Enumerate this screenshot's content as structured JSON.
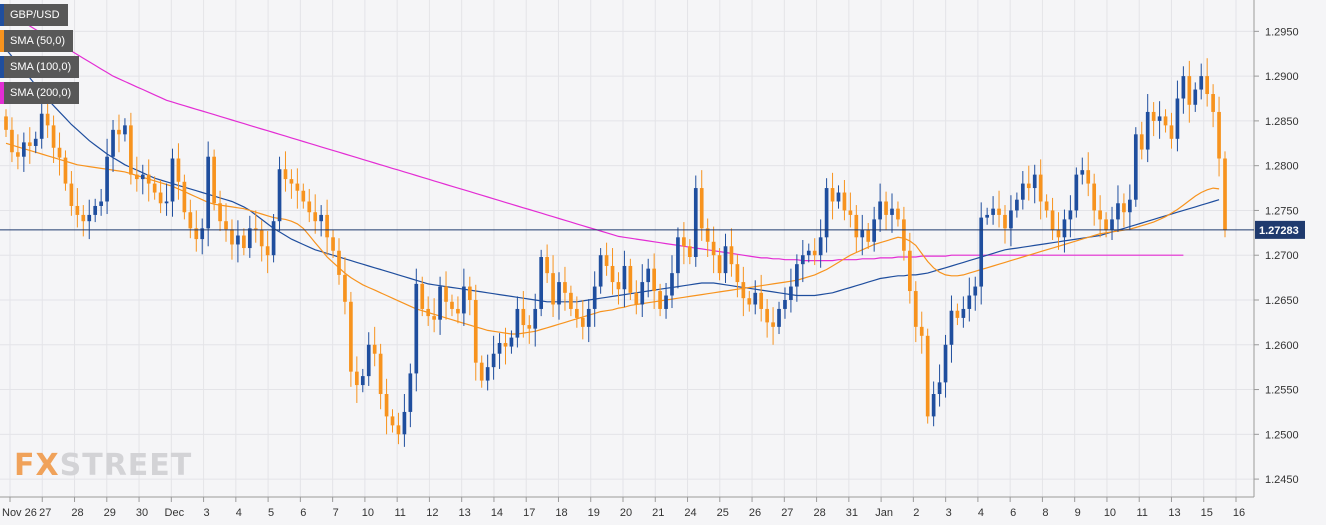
{
  "chart_data": {
    "type": "candlestick",
    "symbol": "GBP/USD",
    "ylim": [
      1.243,
      1.2985
    ],
    "y_ticks": [
      "1.2950",
      "1.2900",
      "1.2850",
      "1.2800",
      "1.2750",
      "1.2700",
      "1.2650",
      "1.2600",
      "1.2550",
      "1.2500",
      "1.2450"
    ],
    "x_ticks": [
      "Nov 26",
      "27",
      "28",
      "29",
      "30",
      "Dec",
      "3",
      "4",
      "5",
      "6",
      "7",
      "10",
      "11",
      "12",
      "13",
      "14",
      "17",
      "18",
      "19",
      "20",
      "21",
      "24",
      "25",
      "26",
      "27",
      "28",
      "31",
      "Jan",
      "2",
      "3",
      "4",
      "6",
      "8",
      "9",
      "10",
      "11",
      "13",
      "15",
      "16"
    ],
    "last_price": "1.27283",
    "legend": [
      {
        "label": "GBP/USD",
        "color": "#1f4e9e"
      },
      {
        "label": "SMA (50,0)",
        "color": "#f7931e"
      },
      {
        "label": "SMA (100,0)",
        "color": "#1f4e9e"
      },
      {
        "label": "SMA (200,0)",
        "color": "#e32dd4"
      }
    ],
    "colors": {
      "up": "#1f4e9e",
      "down": "#f7931e",
      "sma50": "#f7931e",
      "sma100": "#1f4e9e",
      "sma200": "#e32dd4"
    },
    "close": [
      1.284,
      1.2815,
      1.281,
      1.2826,
      1.2822,
      1.283,
      1.2858,
      1.2845,
      1.282,
      1.2809,
      1.278,
      1.2755,
      1.2745,
      1.2738,
      1.2745,
      1.2755,
      1.276,
      1.281,
      1.284,
      1.2835,
      1.2845,
      1.279,
      1.2785,
      1.279,
      1.278,
      1.277,
      1.2758,
      1.276,
      1.2808,
      1.2782,
      1.2748,
      1.273,
      1.2718,
      1.273,
      1.281,
      1.2758,
      1.2738,
      1.2729,
      1.2712,
      1.2722,
      1.2708,
      1.273,
      1.2728,
      1.271,
      1.27,
      1.2738,
      1.2796,
      1.2785,
      1.278,
      1.2772,
      1.276,
      1.2748,
      1.2738,
      1.2745,
      1.272,
      1.2705,
      1.2678,
      1.2648,
      1.257,
      1.2555,
      1.2565,
      1.26,
      1.259,
      1.2545,
      1.252,
      1.251,
      1.25,
      1.2525,
      1.2568,
      1.2668,
      1.264,
      1.2632,
      1.2628,
      1.2665,
      1.2648,
      1.264,
      1.2635,
      1.2665,
      1.265,
      1.258,
      1.256,
      1.2575,
      1.259,
      1.2602,
      1.2598,
      1.2608,
      1.264,
      1.2622,
      1.2618,
      1.264,
      1.2698,
      1.268,
      1.2645,
      1.267,
      1.2658,
      1.264,
      1.263,
      1.262,
      1.264,
      1.2665,
      1.27,
      1.2688,
      1.267,
      1.2662,
      1.2688,
      1.2658,
      1.2645,
      1.267,
      1.2685,
      1.266,
      1.264,
      1.2655,
      1.268,
      1.272,
      1.271,
      1.2698,
      1.2775,
      1.273,
      1.2715,
      1.27,
      1.268,
      1.271,
      1.269,
      1.267,
      1.2652,
      1.2645,
      1.2658,
      1.264,
      1.2625,
      1.262,
      1.264,
      1.265,
      1.2665,
      1.269,
      1.27,
      1.2705,
      1.27,
      1.272,
      1.2775,
      1.276,
      1.277,
      1.275,
      1.2745,
      1.272,
      1.2728,
      1.2715,
      1.274,
      1.276,
      1.2745,
      1.2752,
      1.274,
      1.2705,
      1.266,
      1.262,
      1.261,
      1.252,
      1.2545,
      1.2558,
      1.26,
      1.2638,
      1.263,
      1.264,
      1.2655,
      1.2665,
      1.2742,
      1.2745,
      1.2752,
      1.2745,
      1.273,
      1.275,
      1.2762,
      1.278,
      1.2775,
      1.279,
      1.276,
      1.275,
      1.2728,
      1.272,
      1.274,
      1.275,
      1.279,
      1.2795,
      1.278,
      1.275,
      1.274,
      1.2728,
      1.274,
      1.2758,
      1.2748,
      1.2762,
      1.2835,
      1.2818,
      1.286,
      1.285,
      1.2855,
      1.2845,
      1.283,
      1.2875,
      1.29,
      1.2868,
      1.2885,
      1.29,
      1.288,
      1.286,
      1.2808,
      1.2728
    ],
    "open_prev_index_note": "",
    "sma50": [
      1.2825,
      1.2823,
      1.2821,
      1.2819,
      1.2817,
      1.2815,
      1.2813,
      1.2811,
      1.2809,
      1.2807,
      1.2805,
      1.2803,
      1.2801,
      1.28,
      1.2799,
      1.2798,
      1.2797,
      1.2796,
      1.2795,
      1.2794,
      1.2793,
      1.2791,
      1.2789,
      1.2787,
      1.2785,
      1.2783,
      1.2781,
      1.2779,
      1.2777,
      1.2774,
      1.2771,
      1.2768,
      1.2765,
      1.2762,
      1.2759,
      1.2757,
      1.2756,
      1.2755,
      1.2754,
      1.2753,
      1.2752,
      1.275,
      1.2748,
      1.2746,
      1.2744,
      1.2742,
      1.2741,
      1.274,
      1.2738,
      1.2735,
      1.273,
      1.2722,
      1.2714,
      1.2706,
      1.2698,
      1.2692,
      1.2686,
      1.268,
      1.2675,
      1.2671,
      1.2667,
      1.2664,
      1.2661,
      1.2658,
      1.2655,
      1.2652,
      1.2649,
      1.2646,
      1.2643,
      1.264,
      1.2638,
      1.2636,
      1.2634,
      1.2632,
      1.263,
      1.2628,
      1.2626,
      1.2624,
      1.2622,
      1.262,
      1.2618,
      1.2616,
      1.2615,
      1.2614,
      1.2613,
      1.2612,
      1.2612,
      1.2613,
      1.2614,
      1.2615,
      1.2617,
      1.2619,
      1.2621,
      1.2623,
      1.2625,
      1.2627,
      1.2629,
      1.2631,
      1.2633,
      1.2635,
      1.2637,
      1.2638,
      1.2639,
      1.2641,
      1.2642,
      1.2644,
      1.2645,
      1.2646,
      1.2647,
      1.2648,
      1.2649,
      1.265,
      1.2651,
      1.2652,
      1.2653,
      1.2654,
      1.2655,
      1.2656,
      1.2657,
      1.2658,
      1.2659,
      1.266,
      1.2661,
      1.2662,
      1.2663,
      1.2664,
      1.2665,
      1.2666,
      1.2667,
      1.2668,
      1.2669,
      1.267,
      1.2671,
      1.2672,
      1.2674,
      1.2676,
      1.2678,
      1.2681,
      1.2684,
      1.2688,
      1.2692,
      1.2696,
      1.27,
      1.2703,
      1.2706,
      1.2709,
      1.2712,
      1.2714,
      1.2716,
      1.2718,
      1.272,
      1.2719,
      1.2716,
      1.2711,
      1.2702,
      1.2693,
      1.2686,
      1.2681,
      1.2678,
      1.2677,
      1.2677,
      1.2678,
      1.268,
      1.2682,
      1.2684,
      1.2686,
      1.2688,
      1.269,
      1.2692,
      1.2694,
      1.2696,
      1.2698,
      1.27,
      1.2702,
      1.2704,
      1.2706,
      1.2708,
      1.271,
      1.2712,
      1.2714,
      1.2716,
      1.2718,
      1.272,
      1.2722,
      1.2724,
      1.2725,
      1.2726,
      1.2727,
      1.2728,
      1.2729,
      1.2731,
      1.2733,
      1.2735,
      1.2737,
      1.274,
      1.2743,
      1.2747,
      1.2751,
      1.2756,
      1.2761,
      1.2766,
      1.277,
      1.2773,
      1.2775,
      1.2774
    ],
    "sma100": [
      1.293,
      1.2922,
      1.2914,
      1.2906,
      1.2898,
      1.289,
      1.2882,
      1.2874,
      1.2867,
      1.286,
      1.2853,
      1.2846,
      1.284,
      1.2834,
      1.2828,
      1.2823,
      1.2818,
      1.2813,
      1.2809,
      1.2805,
      1.2801,
      1.2798,
      1.2795,
      1.2792,
      1.2789,
      1.2786,
      1.2784,
      1.2782,
      1.278,
      1.2778,
      1.2776,
      1.2774,
      1.2772,
      1.277,
      1.2768,
      1.2766,
      1.2764,
      1.2762,
      1.276,
      1.2757,
      1.2754,
      1.275,
      1.2745,
      1.274,
      1.2735,
      1.273,
      1.2726,
      1.2722,
      1.2718,
      1.2715,
      1.2712,
      1.2709,
      1.2706,
      1.2704,
      1.2702,
      1.27,
      1.2698,
      1.2696,
      1.2694,
      1.2692,
      1.269,
      1.2688,
      1.2686,
      1.2684,
      1.2682,
      1.268,
      1.2678,
      1.2676,
      1.2674,
      1.2672,
      1.267,
      1.2668,
      1.2667,
      1.2666,
      1.2665,
      1.2664,
      1.2663,
      1.2662,
      1.2661,
      1.266,
      1.2659,
      1.2658,
      1.2657,
      1.2656,
      1.2655,
      1.2654,
      1.2653,
      1.2652,
      1.2651,
      1.265,
      1.2649,
      1.2648,
      1.2648,
      1.2648,
      1.2648,
      1.2648,
      1.2648,
      1.2649,
      1.265,
      1.2651,
      1.2652,
      1.2653,
      1.2654,
      1.2655,
      1.2656,
      1.2657,
      1.2658,
      1.2659,
      1.266,
      1.2661,
      1.2662,
      1.2663,
      1.2664,
      1.2665,
      1.2666,
      1.2667,
      1.2668,
      1.2669,
      1.2669,
      1.2669,
      1.2668,
      1.2667,
      1.2666,
      1.2665,
      1.2664,
      1.2663,
      1.2662,
      1.2661,
      1.266,
      1.2659,
      1.2658,
      1.2657,
      1.2656,
      1.2655,
      1.2655,
      1.2655,
      1.2655,
      1.2656,
      1.2657,
      1.2658,
      1.266,
      1.2662,
      1.2664,
      1.2666,
      1.2668,
      1.267,
      1.2672,
      1.2674,
      1.2675,
      1.2676,
      1.2677,
      1.2677,
      1.2678,
      1.2678,
      1.2679,
      1.268,
      1.2682,
      1.2684,
      1.2686,
      1.2688,
      1.269,
      1.2692,
      1.2694,
      1.2696,
      1.2698,
      1.27,
      1.2702,
      1.2704,
      1.2706,
      1.2707,
      1.2708,
      1.2709,
      1.271,
      1.2711,
      1.2712,
      1.2713,
      1.2714,
      1.2715,
      1.2716,
      1.2717,
      1.2718,
      1.2719,
      1.272,
      1.2721,
      1.2722,
      1.2724,
      1.2726,
      1.2728,
      1.273,
      1.2732,
      1.2734,
      1.2736,
      1.2738,
      1.274,
      1.2742,
      1.2744,
      1.2746,
      1.2748,
      1.275,
      1.2752,
      1.2754,
      1.2756,
      1.2758,
      1.276,
      1.2762
    ],
    "sma200": [
      1.2972,
      1.2968,
      1.2964,
      1.296,
      1.2956,
      1.2952,
      1.2948,
      1.2944,
      1.294,
      1.2936,
      1.2932,
      1.2928,
      1.2924,
      1.292,
      1.2916,
      1.2912,
      1.2908,
      1.2904,
      1.29,
      1.2897,
      1.2894,
      1.2891,
      1.2888,
      1.2885,
      1.2882,
      1.2879,
      1.2876,
      1.2873,
      1.2871,
      1.2869,
      1.2867,
      1.2865,
      1.2863,
      1.2861,
      1.2859,
      1.2857,
      1.2855,
      1.2853,
      1.2851,
      1.2849,
      1.2847,
      1.2845,
      1.2843,
      1.2841,
      1.2839,
      1.2837,
      1.2835,
      1.2833,
      1.2831,
      1.2829,
      1.2827,
      1.2825,
      1.2823,
      1.2821,
      1.2819,
      1.2817,
      1.2815,
      1.2813,
      1.2811,
      1.2809,
      1.2807,
      1.2805,
      1.2803,
      1.2801,
      1.2799,
      1.2797,
      1.2795,
      1.2793,
      1.2791,
      1.2789,
      1.2787,
      1.2785,
      1.2783,
      1.2781,
      1.2779,
      1.2777,
      1.2775,
      1.2773,
      1.2771,
      1.2769,
      1.2767,
      1.2765,
      1.2763,
      1.2761,
      1.2759,
      1.2757,
      1.2755,
      1.2753,
      1.2751,
      1.2749,
      1.2747,
      1.2745,
      1.2743,
      1.2741,
      1.2739,
      1.2737,
      1.2735,
      1.2733,
      1.2731,
      1.2729,
      1.2727,
      1.2725,
      1.2723,
      1.2721,
      1.272,
      1.2719,
      1.2718,
      1.2717,
      1.2716,
      1.2715,
      1.2714,
      1.2713,
      1.2712,
      1.2711,
      1.271,
      1.2709,
      1.2708,
      1.2707,
      1.2706,
      1.2705,
      1.2704,
      1.2703,
      1.2702,
      1.2701,
      1.27,
      1.2699,
      1.2698,
      1.2697,
      1.2697,
      1.2696,
      1.2696,
      1.2695,
      1.2695,
      1.2695,
      1.2694,
      1.2694,
      1.2694,
      1.2694,
      1.2694,
      1.2694,
      1.2695,
      1.2695,
      1.2695,
      1.2695,
      1.2696,
      1.2696,
      1.2696,
      1.2697,
      1.2697,
      1.2697,
      1.2698,
      1.2698,
      1.2698,
      1.2698,
      1.2699,
      1.2699,
      1.2699,
      1.2699,
      1.2699,
      1.27,
      1.27,
      1.27,
      1.27,
      1.27,
      1.27,
      1.27,
      1.27,
      1.27,
      1.27,
      1.27,
      1.27,
      1.27,
      1.27,
      1.27,
      1.27,
      1.27,
      1.27,
      1.27,
      1.27,
      1.27,
      1.27,
      1.27,
      1.27,
      1.27,
      1.27,
      1.27,
      1.27,
      1.27,
      1.27,
      1.27,
      1.27,
      1.27,
      1.27,
      1.27,
      1.27,
      1.27,
      1.27,
      1.27,
      1.27
    ]
  },
  "watermark": {
    "fx": "FX",
    "street": "STREET"
  }
}
